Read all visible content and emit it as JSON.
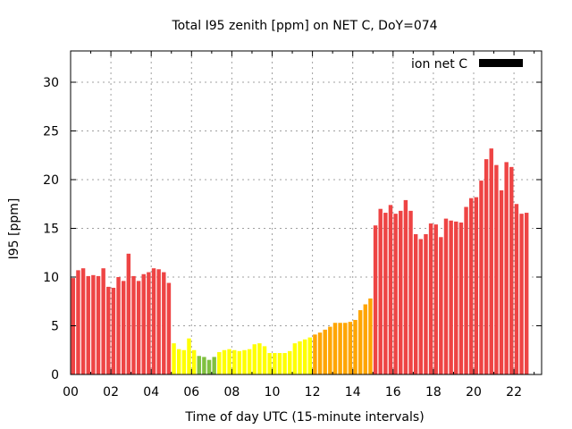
{
  "chart_data": {
    "type": "bar",
    "title": "Total I95 zenith [ppm] on NET C, DoY=074",
    "xlabel": "Time of day UTC (15-minute intervals)",
    "ylabel": "I95 [ppm]",
    "xlim": [
      0,
      23.4
    ],
    "ylim": [
      0,
      33
    ],
    "grid": true,
    "legend": {
      "label": "ion net C",
      "placement": "top-right",
      "color": "#000000"
    },
    "x_ticks": [
      "00",
      "02",
      "04",
      "06",
      "08",
      "10",
      "12",
      "14",
      "16",
      "18",
      "20",
      "22"
    ],
    "x_tick_values": [
      0,
      2,
      4,
      6,
      8,
      10,
      12,
      14,
      16,
      18,
      20,
      22
    ],
    "y_ticks": [
      "0",
      "5",
      "10",
      "15",
      "20",
      "25",
      "30"
    ],
    "y_tick_values": [
      0,
      5,
      10,
      15,
      20,
      25,
      30
    ],
    "interval_hours": 0.25,
    "colors": {
      "high": "#ee4444",
      "elevated": "#ffa500",
      "moderate": "#ffff00",
      "low": "#80c040"
    },
    "values": [
      9.9,
      10.7,
      10.9,
      10.1,
      10.2,
      10.1,
      10.9,
      9.0,
      8.9,
      10.0,
      9.6,
      12.4,
      10.1,
      9.6,
      10.3,
      10.5,
      10.9,
      10.8,
      10.5,
      9.4,
      3.2,
      2.6,
      2.5,
      3.7,
      2.5,
      1.9,
      1.8,
      1.5,
      1.8,
      2.3,
      2.5,
      2.6,
      2.5,
      2.4,
      2.5,
      2.6,
      3.1,
      3.2,
      2.9,
      2.2,
      2.2,
      2.2,
      2.2,
      2.4,
      3.2,
      3.4,
      3.6,
      3.8,
      4.1,
      4.3,
      4.6,
      4.9,
      5.3,
      5.3,
      5.3,
      5.4,
      5.6,
      6.6,
      7.2,
      7.8,
      15.3,
      17.0,
      16.6,
      17.4,
      16.5,
      16.8,
      17.9,
      16.8,
      14.4,
      13.9,
      14.4,
      15.5,
      15.4,
      14.1,
      16.0,
      15.8,
      15.7,
      15.6,
      17.2,
      18.1,
      18.2,
      19.9,
      22.1,
      23.2,
      21.5,
      18.9,
      21.8,
      21.3,
      17.5,
      16.5,
      16.6
    ],
    "bar_classes": [
      "high",
      "high",
      "high",
      "high",
      "high",
      "high",
      "high",
      "high",
      "high",
      "high",
      "high",
      "high",
      "high",
      "high",
      "high",
      "high",
      "high",
      "high",
      "high",
      "high",
      "moderate",
      "moderate",
      "moderate",
      "moderate",
      "moderate",
      "low",
      "low",
      "low",
      "low",
      "moderate",
      "moderate",
      "moderate",
      "moderate",
      "moderate",
      "moderate",
      "moderate",
      "moderate",
      "moderate",
      "moderate",
      "moderate",
      "moderate",
      "moderate",
      "moderate",
      "moderate",
      "moderate",
      "moderate",
      "moderate",
      "moderate",
      "elevated",
      "elevated",
      "elevated",
      "elevated",
      "elevated",
      "elevated",
      "elevated",
      "elevated",
      "elevated",
      "elevated",
      "elevated",
      "elevated",
      "high",
      "high",
      "high",
      "high",
      "high",
      "high",
      "high",
      "high",
      "high",
      "high",
      "high",
      "high",
      "high",
      "high",
      "high",
      "high",
      "high",
      "high",
      "high",
      "high",
      "high",
      "high",
      "high",
      "high",
      "high",
      "high",
      "high",
      "high",
      "high",
      "high",
      "high"
    ]
  }
}
